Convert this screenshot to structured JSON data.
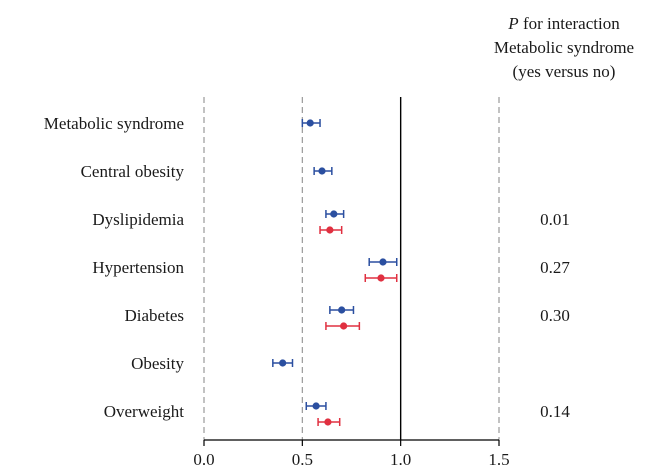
{
  "chart_data": {
    "type": "forest",
    "header": {
      "italic": "P",
      "line1_rest": " for interaction",
      "line2": "Metabolic syndrome",
      "line3": "(yes versus no)"
    },
    "xlim": [
      0.0,
      1.5
    ],
    "x_ticks": [
      "0.0",
      "0.5",
      "1.0",
      "1.5"
    ],
    "reference_line": 1.0,
    "dashed_lines": [
      0.0,
      0.5,
      1.5
    ],
    "colors": {
      "blue": "#2b4fa0",
      "red": "#e03040",
      "axis": "#000000",
      "dash": "#9a9a9a"
    },
    "rows": [
      {
        "label": "Metabolic syndrome",
        "p_interaction": "",
        "estimates": [
          {
            "color": "blue",
            "value": 0.54,
            "ci": [
              0.5,
              0.59
            ]
          }
        ]
      },
      {
        "label": "Central obesity",
        "p_interaction": "",
        "estimates": [
          {
            "color": "blue",
            "value": 0.6,
            "ci": [
              0.56,
              0.65
            ]
          }
        ]
      },
      {
        "label": "Dyslipidemia",
        "p_interaction": "0.01",
        "estimates": [
          {
            "color": "blue",
            "value": 0.66,
            "ci": [
              0.62,
              0.71
            ]
          },
          {
            "color": "red",
            "value": 0.64,
            "ci": [
              0.59,
              0.7
            ]
          }
        ]
      },
      {
        "label": "Hypertension",
        "p_interaction": "0.27",
        "estimates": [
          {
            "color": "blue",
            "value": 0.91,
            "ci": [
              0.84,
              0.98
            ]
          },
          {
            "color": "red",
            "value": 0.9,
            "ci": [
              0.82,
              0.98
            ]
          }
        ]
      },
      {
        "label": "Diabetes",
        "p_interaction": "0.30",
        "estimates": [
          {
            "color": "blue",
            "value": 0.7,
            "ci": [
              0.64,
              0.76
            ]
          },
          {
            "color": "red",
            "value": 0.71,
            "ci": [
              0.62,
              0.79
            ]
          }
        ]
      },
      {
        "label": "Obesity",
        "p_interaction": "",
        "estimates": [
          {
            "color": "blue",
            "value": 0.4,
            "ci": [
              0.35,
              0.45
            ]
          }
        ]
      },
      {
        "label": "Overweight",
        "p_interaction": "0.14",
        "estimates": [
          {
            "color": "blue",
            "value": 0.57,
            "ci": [
              0.52,
              0.62
            ]
          },
          {
            "color": "red",
            "value": 0.63,
            "ci": [
              0.58,
              0.69
            ]
          }
        ]
      }
    ]
  }
}
